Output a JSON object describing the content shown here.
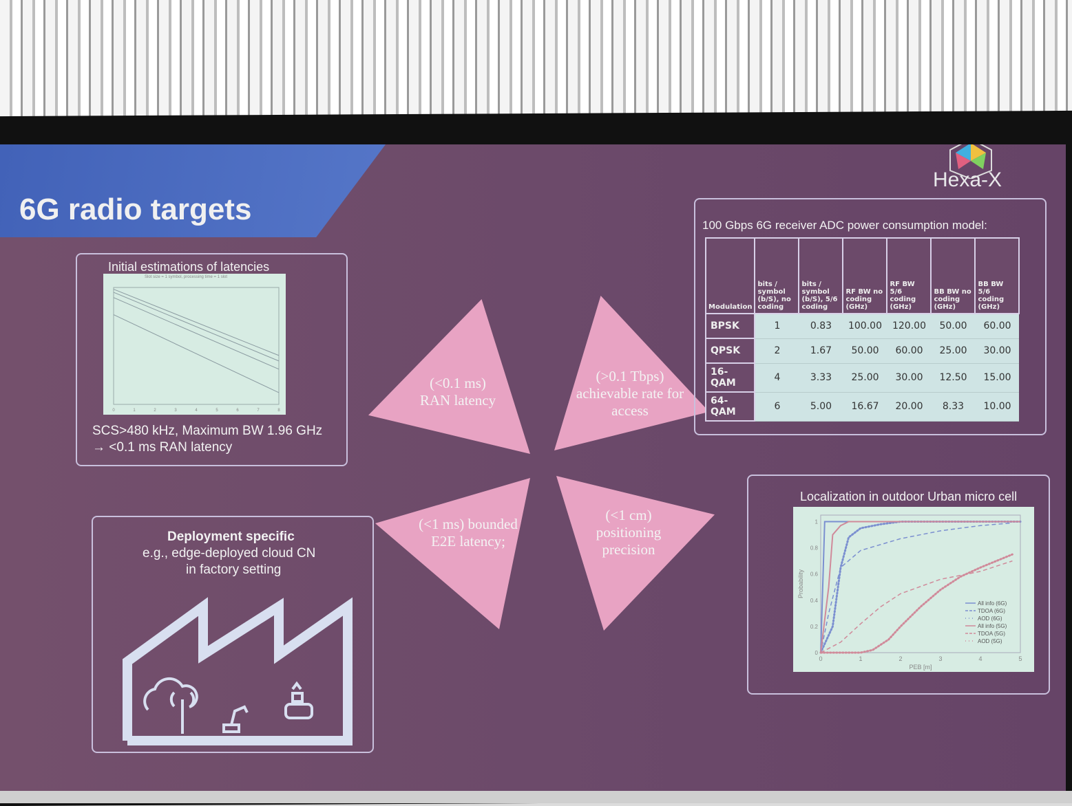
{
  "slide": {
    "title": "6G radio targets",
    "logo_text": "Hexa-X",
    "colors": {
      "slide_bg": "#6c4a6a",
      "title_band": "#4a6ac0",
      "triangle": "#e8a3c3",
      "chart_bg": "#d7ece3"
    }
  },
  "latency_panel": {
    "heading": "Initial estimations of latencies",
    "caption_line1": "SCS>480 kHz, Maximum BW 1.96 GHz",
    "caption_line2": "→ <0.1 ms RAN latency"
  },
  "triangles": [
    {
      "line1": "(<0.1 ms)",
      "line2": "RAN latency",
      "line3": ""
    },
    {
      "line1": "(>0.1 Tbps)",
      "line2": "achievable rate for",
      "line3": "access"
    },
    {
      "line1": "(<1 ms) bounded",
      "line2": "E2E latency;",
      "line3": ""
    },
    {
      "line1": "(<1 cm)",
      "line2": "positioning",
      "line3": "precision"
    }
  ],
  "adc_table": {
    "heading": "100 Gbps 6G receiver ADC power consumption model:",
    "columns": [
      "Modulation",
      "bits / symbol (b/S), no coding",
      "bits / symbol (b/S), 5/6 coding",
      "RF BW no coding (GHz)",
      "RF BW 5/6 coding (GHz)",
      "BB BW no coding (GHz)",
      "BB BW 5/6 coding (GHz)"
    ],
    "rows": [
      [
        "BPSK",
        "1",
        "0.83",
        "100.00",
        "120.00",
        "50.00",
        "60.00"
      ],
      [
        "QPSK",
        "2",
        "1.67",
        "50.00",
        "60.00",
        "25.00",
        "30.00"
      ],
      [
        "16-QAM",
        "4",
        "3.33",
        "25.00",
        "30.00",
        "12.50",
        "15.00"
      ],
      [
        "64-QAM",
        "6",
        "5.00",
        "16.67",
        "20.00",
        "8.33",
        "10.00"
      ]
    ]
  },
  "deployment_panel": {
    "heading": "Deployment specific",
    "line1": "e.g., edge-deployed cloud CN",
    "line2": "in factory setting"
  },
  "chart_data": [
    {
      "type": "line",
      "title": "Initial estimations of latencies",
      "subtitle": "Slot size = 1 symbol, processing time = 1 slot",
      "x_ticks": [
        "0",
        "1",
        "2",
        "3",
        "4",
        "5",
        "6",
        "7",
        "8"
      ],
      "y_log": true,
      "series": [
        {
          "x": [
            0,
            8
          ],
          "y": [
            0.9,
            0.018
          ]
        },
        {
          "x": [
            0,
            8
          ],
          "y": [
            0.75,
            0.013
          ]
        },
        {
          "x": [
            0,
            8
          ],
          "y": [
            0.55,
            0.008
          ]
        },
        {
          "x": [
            0,
            8
          ],
          "y": [
            0.2,
            0.002
          ]
        }
      ]
    },
    {
      "type": "line",
      "title": "Localization in outdoor Urban micro cell",
      "xlabel": "PEB [m]",
      "ylabel": "Probability",
      "xlim": [
        0,
        5
      ],
      "ylim": [
        0,
        1.05
      ],
      "x_ticks": [
        "0",
        "1",
        "2",
        "3",
        "4",
        "5"
      ],
      "y_ticks": [
        "0",
        "0.2",
        "0.4",
        "0.6",
        "0.8",
        "1"
      ],
      "legend_position": "bottom-right",
      "series": [
        {
          "name": "All info (6G)",
          "color": "#7b8fd0",
          "style": "solid",
          "x": [
            0,
            0.05,
            0.1,
            5
          ],
          "y": [
            0,
            0.5,
            1,
            1
          ]
        },
        {
          "name": "TDOA (6G)",
          "color": "#7b8fd0",
          "style": "dashed",
          "x": [
            0,
            0.2,
            0.5,
            1,
            2,
            3,
            4,
            4.8
          ],
          "y": [
            0,
            0.3,
            0.65,
            0.78,
            0.87,
            0.93,
            0.97,
            0.99
          ]
        },
        {
          "name": "AOD (6G)",
          "color": "#7b8fd0",
          "style": "dots",
          "x": [
            0,
            0.3,
            0.5,
            0.7,
            1,
            1.5,
            2,
            5
          ],
          "y": [
            0,
            0.2,
            0.65,
            0.88,
            0.95,
            0.98,
            1,
            1
          ]
        },
        {
          "name": "All info (5G)",
          "color": "#d08a9a",
          "style": "solid",
          "x": [
            0,
            0.2,
            0.3,
            0.5,
            0.7,
            5
          ],
          "y": [
            0,
            0.5,
            0.9,
            0.97,
            1,
            1
          ]
        },
        {
          "name": "TDOA (5G)",
          "color": "#d08a9a",
          "style": "dashed",
          "x": [
            0,
            0.5,
            1,
            1.5,
            2,
            3,
            4,
            4.8
          ],
          "y": [
            0,
            0.08,
            0.22,
            0.35,
            0.45,
            0.56,
            0.62,
            0.7
          ]
        },
        {
          "name": "AOD (5G)",
          "color": "#d08a9a",
          "style": "dots",
          "x": [
            0,
            1,
            1.3,
            1.7,
            2,
            2.5,
            3,
            3.5,
            4,
            4.8
          ],
          "y": [
            0,
            0,
            0.02,
            0.1,
            0.2,
            0.35,
            0.48,
            0.58,
            0.65,
            0.75
          ]
        }
      ]
    }
  ]
}
